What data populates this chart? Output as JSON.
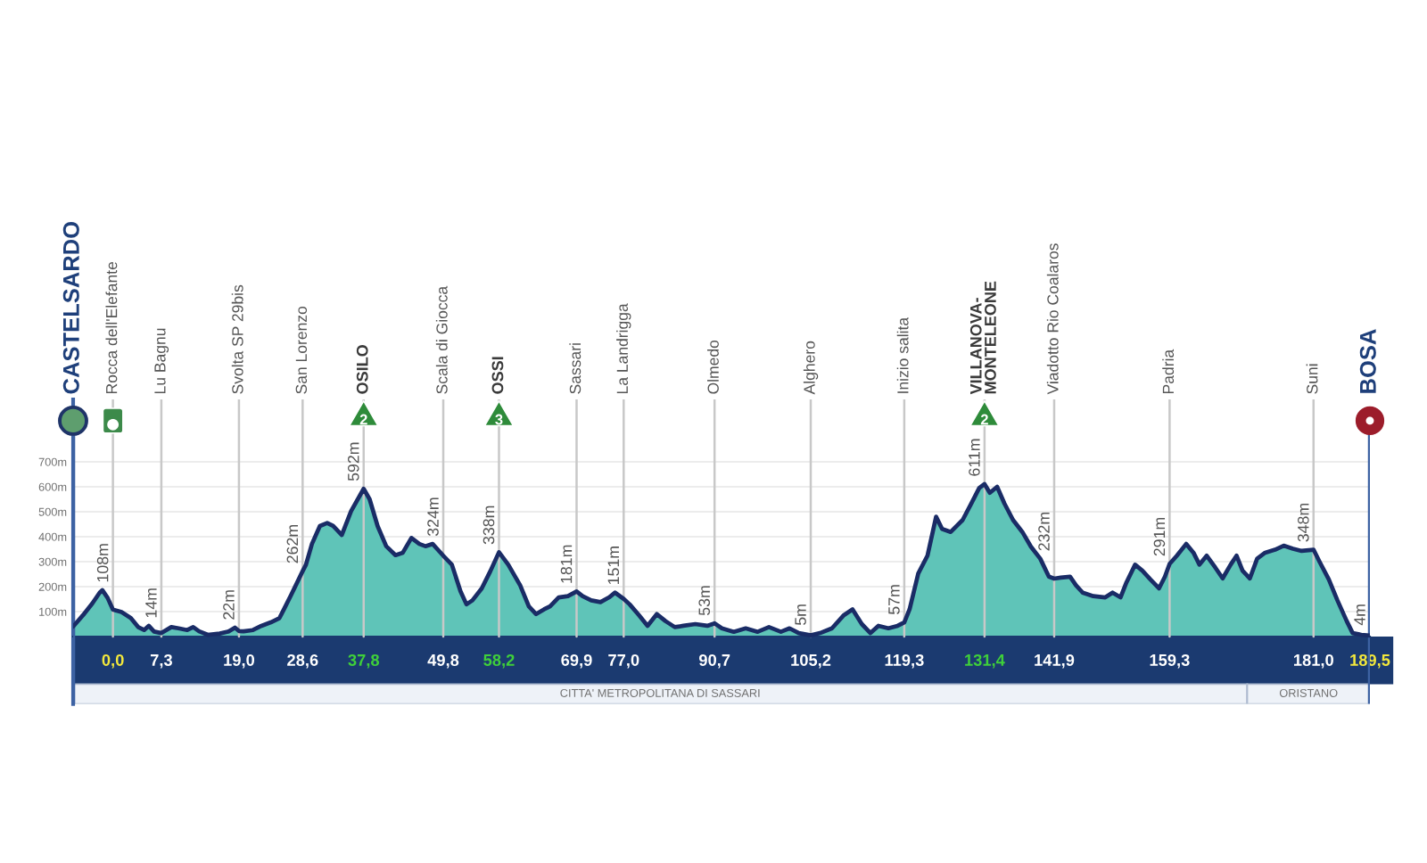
{
  "chart_data": {
    "type": "area",
    "x": [
      -6,
      -4.5,
      -3.1,
      -2.0,
      -1.6,
      -0.8,
      0,
      1.3,
      2.7,
      3.8,
      4.7,
      5.4,
      6.2,
      7.3,
      8.8,
      9.9,
      11.2,
      12.1,
      13.0,
      14.3,
      16.1,
      17.5,
      18.4,
      19.0,
      19.7,
      21.1,
      22.4,
      23.8,
      25.1,
      25.8,
      26.9,
      28.6,
      29.1,
      30.0,
      31.2,
      32.3,
      33.2,
      34.5,
      35.9,
      37.8,
      38.7,
      39.9,
      41.2,
      42.6,
      43.7,
      45.0,
      46.2,
      47.1,
      48.2,
      49.8,
      51.1,
      52.4,
      53.3,
      54.2,
      55.6,
      56.9,
      58.2,
      59.6,
      61.4,
      62.7,
      63.8,
      65.0,
      65.9,
      67.2,
      68.6,
      69.9,
      70.8,
      72.1,
      73.5,
      74.8,
      75.7,
      77.0,
      77.9,
      79.3,
      80.6,
      82.0,
      83.3,
      84.7,
      86.0,
      87.8,
      89.6,
      90.7,
      91.8,
      93.6,
      95.4,
      97.2,
      98.9,
      100.7,
      102.0,
      103.4,
      105.2,
      106.6,
      108.4,
      110.2,
      111.5,
      112.9,
      114.2,
      115.4,
      116.9,
      118.3,
      119.3,
      120.1,
      121.4,
      122.8,
      124.1,
      125.0,
      126.3,
      128.1,
      129.5,
      130.6,
      131.4,
      132.2,
      133.3,
      134.4,
      135.7,
      137.1,
      138.4,
      139.8,
      141.1,
      141.9,
      142.9,
      144.3,
      145.2,
      146.2,
      147.8,
      149.6,
      150.7,
      151.9,
      152.8,
      154.1,
      155.2,
      156.4,
      157.7,
      158.6,
      159.3,
      160.4,
      161.8,
      162.9,
      163.8,
      164.9,
      166.2,
      167.3,
      168.5,
      169.4,
      170.3,
      171.4,
      172.5,
      173.7,
      175.2,
      176.5,
      177.9,
      179.2,
      181.0,
      181.9,
      183.3,
      184.6,
      186.0,
      186.9,
      188.2,
      189.5
    ],
    "series": [
      {
        "color": "#5fc4b8",
        "values": [
          40,
          86,
          133,
          176,
          186,
          155,
          108,
          98,
          74,
          38,
          26,
          43,
          20,
          14,
          38,
          33,
          26,
          38,
          21,
          7,
          12,
          21,
          36,
          22,
          21,
          26,
          43,
          57,
          74,
          110,
          169,
          262,
          288,
          371,
          443,
          455,
          443,
          407,
          502,
          592,
          550,
          443,
          362,
          326,
          336,
          395,
          371,
          362,
          371,
          324,
          288,
          181,
          129,
          145,
          193,
          262,
          338,
          288,
          205,
          121,
          90,
          109,
          121,
          157,
          162,
          181,
          162,
          145,
          138,
          157,
          176,
          151,
          129,
          86,
          43,
          90,
          62,
          38,
          43,
          50,
          43,
          53,
          33,
          19,
          33,
          19,
          38,
          19,
          33,
          14,
          5,
          14,
          33,
          86,
          109,
          50,
          14,
          43,
          33,
          43,
          57,
          109,
          252,
          324,
          480,
          431,
          419,
          467,
          538,
          595,
          611,
          576,
          600,
          533,
          467,
          419,
          360,
          312,
          240,
          232,
          236,
          240,
          205,
          176,
          162,
          157,
          176,
          157,
          217,
          288,
          264,
          229,
          193,
          240,
          291,
          324,
          371,
          336,
          288,
          324,
          276,
          233,
          288,
          324,
          264,
          233,
          312,
          336,
          348,
          364,
          352,
          343,
          348,
          300,
          229,
          145,
          62,
          14,
          7,
          4
        ]
      }
    ],
    "xlim": [
      -6,
      189.5
    ],
    "ylim": [
      -270,
      950
    ],
    "xticks": [
      {
        "value": 0,
        "label": "0,0"
      },
      {
        "value": 7.3,
        "label": "7,3"
      },
      {
        "value": 19,
        "label": "19,0"
      },
      {
        "value": 28.6,
        "label": "28,6"
      },
      {
        "value": 37.8,
        "label": "37,8"
      },
      {
        "value": 49.8,
        "label": "49,8"
      },
      {
        "value": 58.2,
        "label": "58,2"
      },
      {
        "value": 69.9,
        "label": "69,9"
      },
      {
        "value": 77,
        "label": "77,0"
      },
      {
        "value": 90.7,
        "label": "90,7"
      },
      {
        "value": 105.2,
        "label": "105,2"
      },
      {
        "value": 119.3,
        "label": "119,3"
      },
      {
        "value": 131.4,
        "label": "131,4"
      },
      {
        "value": 141.9,
        "label": "141,9"
      },
      {
        "value": 159.3,
        "label": "159,3"
      },
      {
        "value": 181,
        "label": "181,0"
      },
      {
        "value": 189.5,
        "label": "189,5"
      }
    ],
    "yticks": [
      {
        "value": 100,
        "label": "100m"
      },
      {
        "value": 200,
        "label": "200m"
      },
      {
        "value": 300,
        "label": "300m"
      },
      {
        "value": 400,
        "label": "400m"
      },
      {
        "value": 500,
        "label": "500m"
      },
      {
        "value": 600,
        "label": "600m"
      },
      {
        "value": 700,
        "label": "700m"
      }
    ],
    "grid": "y",
    "ref_lines": [
      {
        "axis": "x",
        "value": -6,
        "label": "CASTELSARDO",
        "color": "#3d62a3"
      },
      {
        "axis": "x",
        "value": 0,
        "label": "Rocca dell'Elefante",
        "color": "#c8c8c8"
      },
      {
        "axis": "x",
        "value": 7.3,
        "label": "Lu Bagnu",
        "color": "#c8c8c8"
      },
      {
        "axis": "x",
        "value": 19,
        "label": "Svolta SP 29bis",
        "color": "#c8c8c8"
      },
      {
        "axis": "x",
        "value": 28.6,
        "label": "San Lorenzo",
        "color": "#c8c8c8"
      },
      {
        "axis": "x",
        "value": 37.8,
        "label": "OSILO",
        "color": "#c8c8c8"
      },
      {
        "axis": "x",
        "value": 49.8,
        "label": "Scala di Giocca",
        "color": "#c8c8c8"
      },
      {
        "axis": "x",
        "value": 58.2,
        "label": "OSSI",
        "color": "#c8c8c8"
      },
      {
        "axis": "x",
        "value": 69.9,
        "label": "Sassari",
        "color": "#c8c8c8"
      },
      {
        "axis": "x",
        "value": 77,
        "label": "La Landrigga",
        "color": "#c8c8c8"
      },
      {
        "axis": "x",
        "value": 90.7,
        "label": "Olmedo",
        "color": "#c8c8c8"
      },
      {
        "axis": "x",
        "value": 105.2,
        "label": "Alghero",
        "color": "#c8c8c8"
      },
      {
        "axis": "x",
        "value": 119.3,
        "label": "Inizio salita",
        "color": "#c8c8c8"
      },
      {
        "axis": "x",
        "value": 131.4,
        "label": "VILLANOVA-\nMONTELEONE",
        "color": "#c8c8c8"
      },
      {
        "axis": "x",
        "value": 141.9,
        "label": "Viadotto Rio Coalaros",
        "color": "#c8c8c8"
      },
      {
        "axis": "x",
        "value": 159.3,
        "label": "Padria",
        "color": "#c8c8c8"
      },
      {
        "axis": "x",
        "value": 181,
        "label": "Suni",
        "color": "#c8c8c8"
      },
      {
        "axis": "x",
        "value": 189.5,
        "label": "BOSA",
        "color": "#3d62a3"
      }
    ],
    "bands": [
      {
        "axis": "x",
        "from": -6,
        "to": 171,
        "label": "CITTA' METROPOLITANA DI SASSARI",
        "color": "#eef2f8"
      },
      {
        "axis": "x",
        "from": 171,
        "to": 189.5,
        "label": "ORISTANO",
        "color": "#eef2f8"
      }
    ],
    "annotations": [
      {
        "text": "108m",
        "x": 0,
        "y": 108
      },
      {
        "text": "14m",
        "x": 7.3,
        "y": 14
      },
      {
        "text": "22m",
        "x": 19,
        "y": 22
      },
      {
        "text": "262m",
        "x": 28.6,
        "y": 262
      },
      {
        "text": "592m",
        "x": 37.8,
        "y": 592
      },
      {
        "text": "324m",
        "x": 49.8,
        "y": 324
      },
      {
        "text": "338m",
        "x": 58.2,
        "y": 338
      },
      {
        "text": "181m",
        "x": 69.9,
        "y": 181
      },
      {
        "text": "151m",
        "x": 77,
        "y": 151
      },
      {
        "text": "53m",
        "x": 90.7,
        "y": 53
      },
      {
        "text": "5m",
        "x": 105.2,
        "y": 5
      },
      {
        "text": "57m",
        "x": 119.3,
        "y": 57
      },
      {
        "text": "611m",
        "x": 131.4,
        "y": 611
      },
      {
        "text": "232m",
        "x": 141.9,
        "y": 232
      },
      {
        "text": "291m",
        "x": 159.3,
        "y": 291
      },
      {
        "text": "348m",
        "x": 181,
        "y": 348
      },
      {
        "text": "4m",
        "x": 189.5,
        "y": 4
      },
      {
        "text": "2",
        "x": 37.8
      },
      {
        "text": "3",
        "x": 58.2
      },
      {
        "text": "2",
        "x": 131.4
      }
    ]
  }
}
